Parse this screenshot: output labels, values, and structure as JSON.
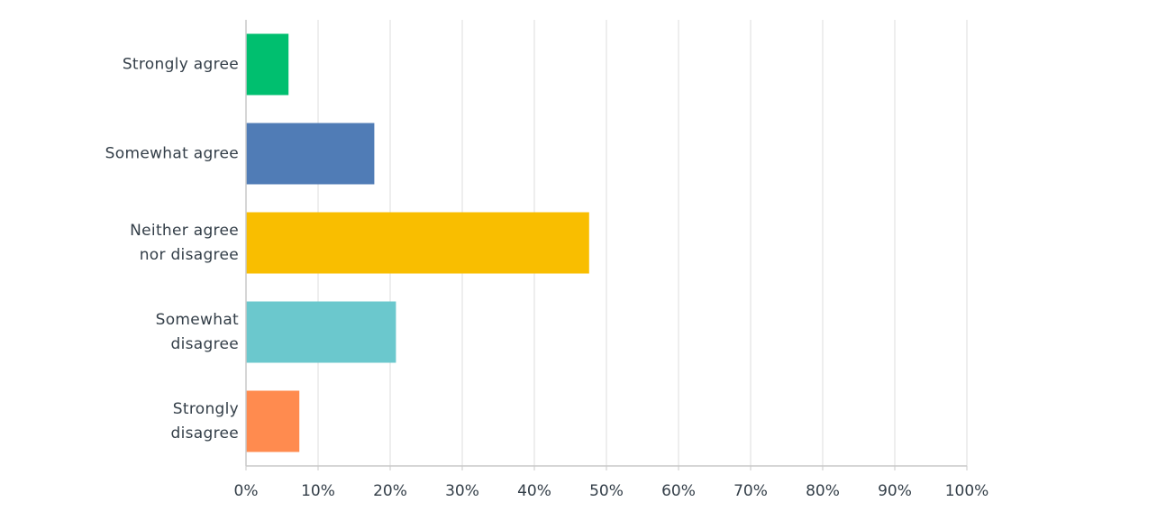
{
  "chart_data": {
    "type": "bar",
    "orientation": "horizontal",
    "categories": [
      "Strongly agree",
      "Somewhat agree",
      "Neither agree\nnor disagree",
      "Somewhat\ndisagree",
      "Strongly\ndisagree"
    ],
    "values": [
      5.9,
      17.8,
      47.6,
      20.8,
      7.4
    ],
    "colors": [
      "#00bf6f",
      "#507cb6",
      "#f9be00",
      "#6bc8cd",
      "#ff8b4f"
    ],
    "xlim": [
      0,
      100
    ],
    "xticks": [
      {
        "value": 0,
        "label": "0%"
      },
      {
        "value": 10,
        "label": "10%"
      },
      {
        "value": 20,
        "label": "20%"
      },
      {
        "value": 30,
        "label": "30%"
      },
      {
        "value": 40,
        "label": "40%"
      },
      {
        "value": 50,
        "label": "50%"
      },
      {
        "value": 60,
        "label": "60%"
      },
      {
        "value": 70,
        "label": "70%"
      },
      {
        "value": 80,
        "label": "80%"
      },
      {
        "value": 90,
        "label": "90%"
      },
      {
        "value": 100,
        "label": "100%"
      }
    ],
    "grid": true
  }
}
